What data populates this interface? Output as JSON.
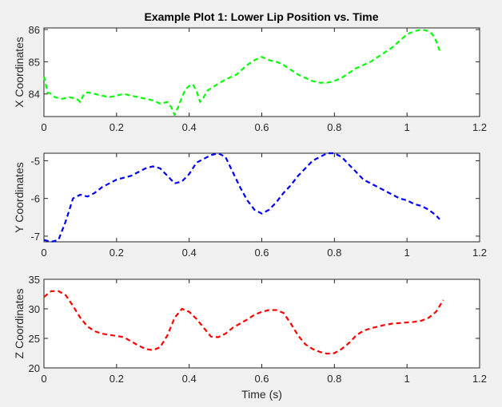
{
  "figure_title": "Example Plot 1: Lower Lip Position vs. Time",
  "chart_data": [
    {
      "type": "line",
      "title": "Example Plot 1: Lower Lip Position vs. Time",
      "xlabel": "",
      "ylabel": "X Coordinates",
      "xlim": [
        0,
        1.2
      ],
      "ylim": [
        83.3,
        86.05
      ],
      "xticks": [
        "0",
        "0.2",
        "0.4",
        "0.6",
        "0.8",
        "1",
        "1.2"
      ],
      "yticks": [
        "84",
        "85",
        "86"
      ],
      "ytick_values": [
        84,
        85,
        86
      ],
      "grid": false,
      "series": [
        {
          "color": "#00ff00",
          "style": "dashed",
          "x": [
            0,
            0.01,
            0.02,
            0.03,
            0.05,
            0.07,
            0.09,
            0.1,
            0.11,
            0.12,
            0.14,
            0.16,
            0.18,
            0.2,
            0.22,
            0.24,
            0.26,
            0.28,
            0.3,
            0.32,
            0.34,
            0.35,
            0.36,
            0.37,
            0.38,
            0.39,
            0.4,
            0.41,
            0.42,
            0.43,
            0.44,
            0.45,
            0.47,
            0.5,
            0.53,
            0.56,
            0.58,
            0.6,
            0.62,
            0.64,
            0.66,
            0.68,
            0.7,
            0.72,
            0.74,
            0.76,
            0.78,
            0.8,
            0.82,
            0.84,
            0.86,
            0.88,
            0.9,
            0.92,
            0.94,
            0.96,
            0.98,
            1.0,
            1.02,
            1.04,
            1.06,
            1.07,
            1.08,
            1.09
          ],
          "y": [
            84.55,
            84.05,
            84.0,
            83.9,
            83.85,
            83.9,
            83.85,
            83.75,
            84.0,
            84.05,
            84.0,
            83.95,
            83.9,
            83.95,
            84.0,
            83.95,
            83.9,
            83.85,
            83.8,
            83.7,
            83.75,
            83.6,
            83.35,
            83.6,
            83.9,
            84.15,
            84.25,
            84.3,
            84.1,
            83.75,
            83.9,
            84.1,
            84.25,
            84.45,
            84.6,
            84.9,
            85.05,
            85.15,
            85.05,
            85.0,
            84.9,
            84.75,
            84.6,
            84.5,
            84.4,
            84.35,
            84.35,
            84.4,
            84.5,
            84.65,
            84.8,
            84.9,
            85.0,
            85.15,
            85.3,
            85.45,
            85.65,
            85.85,
            85.95,
            86.0,
            85.95,
            85.85,
            85.65,
            85.35
          ]
        }
      ]
    },
    {
      "type": "line",
      "title": "",
      "xlabel": "",
      "ylabel": "Y Coordinates",
      "xlim": [
        0,
        1.2
      ],
      "ylim": [
        -7.15,
        -4.8
      ],
      "xticks": [
        "0",
        "0.2",
        "0.4",
        "0.6",
        "0.8",
        "1",
        "1.2"
      ],
      "yticks": [
        "-5",
        "-6",
        "-7"
      ],
      "ytick_values": [
        -5,
        -6,
        -7
      ],
      "grid": false,
      "series": [
        {
          "color": "#0000ff",
          "style": "dashed",
          "x": [
            0,
            0.02,
            0.04,
            0.06,
            0.08,
            0.1,
            0.12,
            0.14,
            0.16,
            0.18,
            0.2,
            0.22,
            0.24,
            0.26,
            0.28,
            0.3,
            0.32,
            0.34,
            0.36,
            0.38,
            0.4,
            0.42,
            0.44,
            0.46,
            0.48,
            0.5,
            0.52,
            0.54,
            0.56,
            0.58,
            0.6,
            0.62,
            0.64,
            0.66,
            0.68,
            0.7,
            0.72,
            0.74,
            0.76,
            0.78,
            0.8,
            0.82,
            0.84,
            0.86,
            0.88,
            0.9,
            0.92,
            0.94,
            0.96,
            0.98,
            1.0,
            1.02,
            1.04,
            1.06,
            1.08,
            1.09
          ],
          "y": [
            -7.1,
            -7.15,
            -7.1,
            -6.6,
            -6.0,
            -5.9,
            -5.95,
            -5.85,
            -5.7,
            -5.6,
            -5.5,
            -5.45,
            -5.4,
            -5.3,
            -5.2,
            -5.15,
            -5.2,
            -5.4,
            -5.6,
            -5.55,
            -5.35,
            -5.05,
            -4.95,
            -4.85,
            -4.8,
            -4.9,
            -5.3,
            -5.7,
            -6.05,
            -6.3,
            -6.4,
            -6.3,
            -6.1,
            -5.85,
            -5.65,
            -5.4,
            -5.2,
            -5.0,
            -4.9,
            -4.8,
            -4.8,
            -4.9,
            -5.1,
            -5.3,
            -5.5,
            -5.6,
            -5.7,
            -5.8,
            -5.9,
            -6.0,
            -6.05,
            -6.15,
            -6.2,
            -6.3,
            -6.45,
            -6.55
          ]
        }
      ]
    },
    {
      "type": "line",
      "title": "",
      "xlabel": "Time (s)",
      "ylabel": "Z Coordinates",
      "xlim": [
        0,
        1.2
      ],
      "ylim": [
        20,
        35
      ],
      "xticks": [
        "0",
        "0.2",
        "0.4",
        "0.6",
        "0.8",
        "1",
        "1.2"
      ],
      "yticks": [
        "20",
        "25",
        "30",
        "35"
      ],
      "ytick_values": [
        20,
        25,
        30,
        35
      ],
      "grid": false,
      "series": [
        {
          "color": "#ff0000",
          "style": "dashed",
          "x": [
            0,
            0.02,
            0.04,
            0.06,
            0.08,
            0.1,
            0.12,
            0.14,
            0.16,
            0.18,
            0.2,
            0.22,
            0.24,
            0.26,
            0.28,
            0.3,
            0.32,
            0.34,
            0.36,
            0.38,
            0.4,
            0.42,
            0.44,
            0.46,
            0.48,
            0.5,
            0.52,
            0.54,
            0.56,
            0.58,
            0.6,
            0.62,
            0.64,
            0.66,
            0.68,
            0.7,
            0.72,
            0.74,
            0.76,
            0.78,
            0.8,
            0.82,
            0.84,
            0.86,
            0.88,
            0.9,
            0.92,
            0.94,
            0.96,
            0.98,
            1.0,
            1.02,
            1.04,
            1.06,
            1.08,
            1.1
          ],
          "y": [
            32.0,
            33.0,
            33.0,
            32.3,
            30.5,
            28.5,
            27.0,
            26.2,
            25.8,
            25.6,
            25.4,
            25.2,
            24.5,
            23.8,
            23.2,
            23.0,
            23.5,
            25.5,
            28.5,
            30.0,
            29.5,
            28.3,
            26.8,
            25.3,
            25.2,
            25.8,
            26.8,
            27.5,
            28.2,
            29.0,
            29.5,
            29.8,
            29.8,
            29.3,
            27.5,
            25.5,
            24.0,
            23.2,
            22.7,
            22.4,
            22.5,
            23.2,
            24.2,
            25.5,
            26.3,
            26.7,
            27.0,
            27.3,
            27.5,
            27.6,
            27.7,
            27.8,
            28.0,
            28.5,
            29.5,
            31.5
          ]
        }
      ]
    }
  ]
}
